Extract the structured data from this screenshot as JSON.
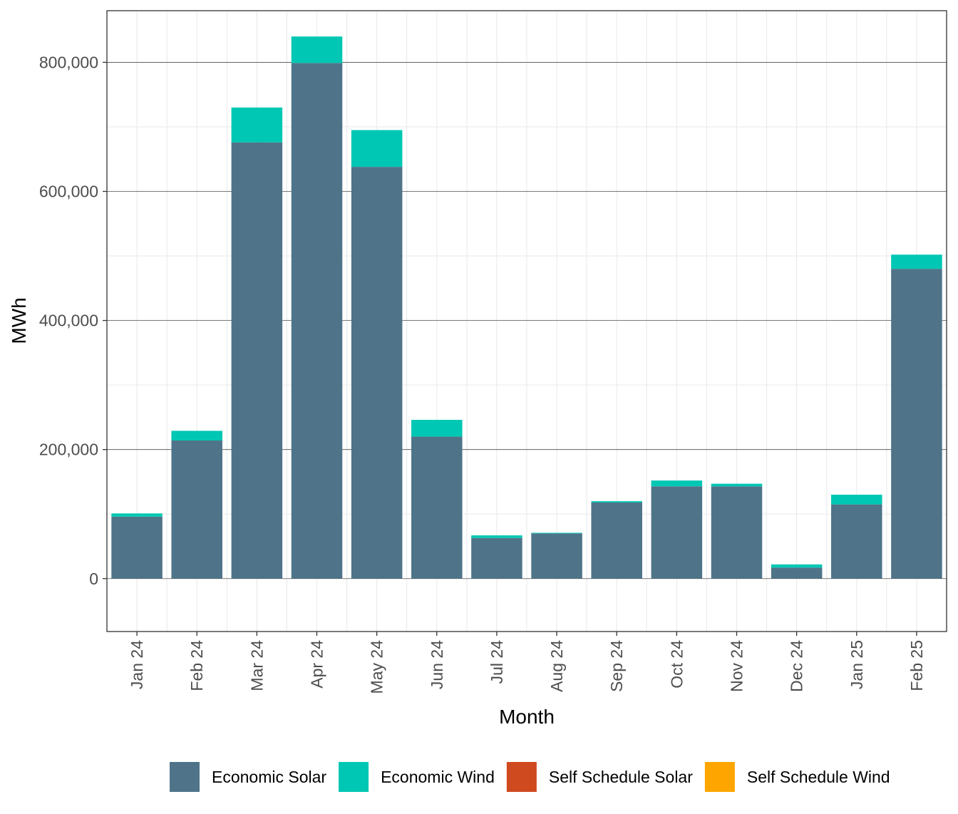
{
  "chart_data": {
    "type": "bar",
    "stacked": true,
    "xlabel": "Month",
    "ylabel": "MWh",
    "ylim": [
      -82000,
      880000
    ],
    "y_ticks": [
      0,
      200000,
      400000,
      600000,
      800000
    ],
    "y_tick_labels": [
      "0",
      "200,000",
      "400,000",
      "600,000",
      "800,000"
    ],
    "grid": true,
    "legend_position": "bottom",
    "categories": [
      "Jan 24",
      "Feb 24",
      "Mar 24",
      "Apr 24",
      "May 24",
      "Jun 24",
      "Jul 24",
      "Aug 24",
      "Sep 24",
      "Oct 24",
      "Nov 24",
      "Dec 24",
      "Jan 25",
      "Feb 25"
    ],
    "series": [
      {
        "name": "Self Schedule Wind",
        "color": "#FFA500",
        "values": [
          0,
          0,
          0,
          0,
          0,
          0,
          0,
          0,
          0,
          0,
          0,
          0,
          0,
          0
        ]
      },
      {
        "name": "Self Schedule Solar",
        "color": "#D04A1F",
        "values": [
          0,
          0,
          0,
          0,
          0,
          0,
          0,
          0,
          0,
          0,
          0,
          0,
          0,
          0
        ]
      },
      {
        "name": "Economic Wind",
        "color": "#00C7B3",
        "values": [
          5000,
          15000,
          54000,
          41000,
          57000,
          26000,
          4000,
          1000,
          2000,
          9000,
          4000,
          5000,
          15000,
          22000
        ]
      },
      {
        "name": "Economic Solar",
        "color": "#4F7489",
        "values": [
          96000,
          214000,
          676000,
          799000,
          638000,
          220000,
          63000,
          70000,
          118000,
          143000,
          143000,
          17000,
          115000,
          480000
        ]
      }
    ],
    "legend": [
      "Economic Solar",
      "Economic Wind",
      "Self Schedule Solar",
      "Self Schedule Wind"
    ]
  }
}
